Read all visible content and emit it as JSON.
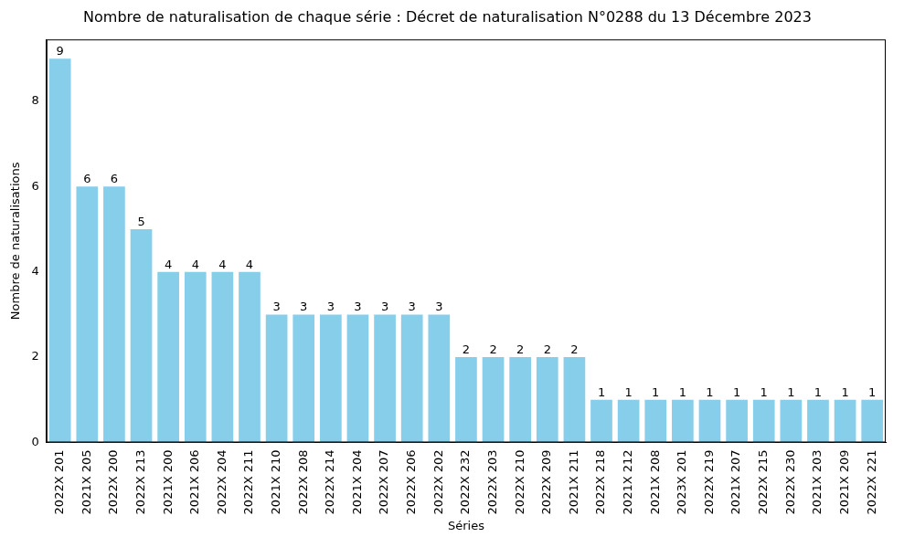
{
  "chart_data": {
    "type": "bar",
    "title": "Nombre de naturalisation de chaque série : Décret de naturalisation N°0288 du 13 Décembre 2023",
    "x_label": "Séries",
    "y_label": "Nombre de naturalisations",
    "categories": [
      "2022X 201",
      "2021X 205",
      "2022X 200",
      "2022X 213",
      "2021X 200",
      "2021X 206",
      "2022X 204",
      "2022X 211",
      "2021X 210",
      "2022X 208",
      "2022X 214",
      "2021X 204",
      "2022X 207",
      "2022X 206",
      "2022X 202",
      "2022X 232",
      "2022X 203",
      "2022X 210",
      "2022X 209",
      "2021X 211",
      "2022X 218",
      "2021X 212",
      "2021X 208",
      "2023X 201",
      "2022X 219",
      "2021X 207",
      "2022X 215",
      "2022X 230",
      "2021X 203",
      "2021X 209",
      "2022X 221"
    ],
    "values": [
      9,
      6,
      6,
      5,
      4,
      4,
      4,
      4,
      3,
      3,
      3,
      3,
      3,
      3,
      3,
      2,
      2,
      2,
      2,
      2,
      1,
      1,
      1,
      1,
      1,
      1,
      1,
      1,
      1,
      1,
      1
    ],
    "color": "#87ceeb",
    "ylim": [
      0,
      9.45
    ],
    "yticks": [
      0,
      2,
      4,
      6,
      8
    ],
    "grid": false,
    "data_labels": true
  }
}
